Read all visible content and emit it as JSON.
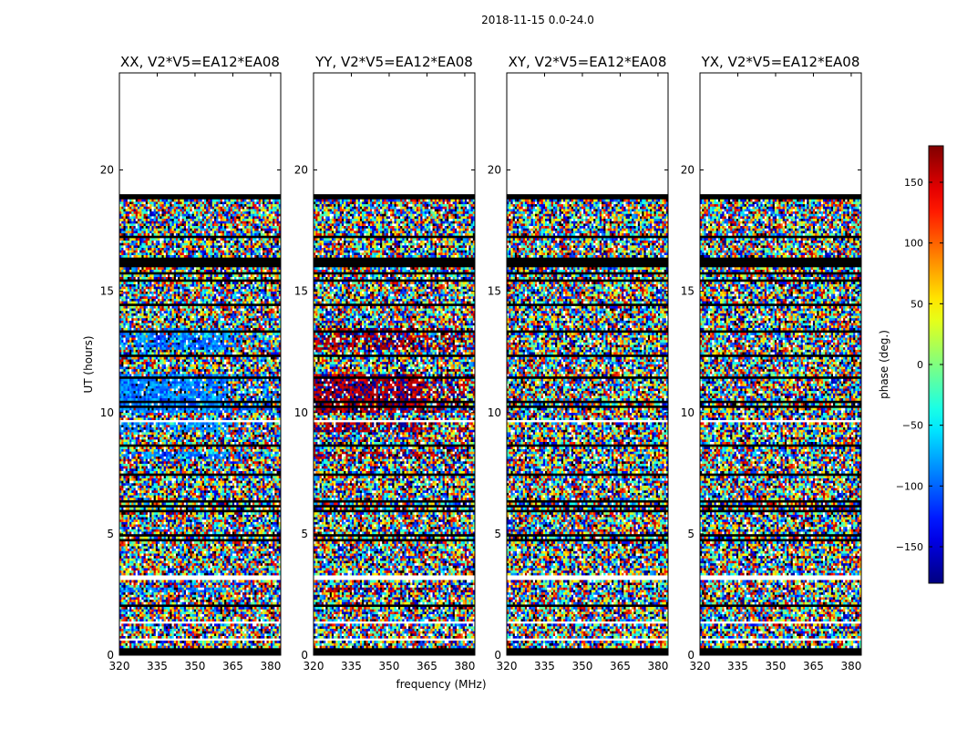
{
  "suptitle": "2018-11-15 0.0-24.0",
  "chart_data": {
    "type": "heatmap",
    "xlabel": "frequency (MHz)",
    "ylabel": "UT (hours)",
    "xlim": [
      320,
      384
    ],
    "ylim": [
      0,
      24
    ],
    "xticks": [
      320,
      335,
      350,
      365,
      380
    ],
    "yticks": [
      0,
      5,
      10,
      15,
      20
    ],
    "colorbar": {
      "label": "phase (deg.)",
      "range": [
        -180,
        180
      ],
      "ticks": [
        -150,
        -100,
        -50,
        0,
        50,
        100,
        150
      ],
      "tick_labels": [
        "−150",
        "−100",
        "−50",
        "0",
        "50",
        "100",
        "150"
      ],
      "colormap": "jet"
    },
    "data_extent_ut": [
      0,
      19
    ],
    "panels": [
      {
        "title": "XX, V2*V5=EA12*EA08",
        "polarization": "XX",
        "coherent_phase_deg": -90
      },
      {
        "title": "YY, V2*V5=EA12*EA08",
        "polarization": "YY",
        "coherent_phase_deg": 170
      },
      {
        "title": "XY, V2*V5=EA12*EA08",
        "polarization": "XY",
        "coherent_phase_deg": null
      },
      {
        "title": "YX, V2*V5=EA12*EA08",
        "polarization": "YX",
        "coherent_phase_deg": null
      }
    ]
  }
}
